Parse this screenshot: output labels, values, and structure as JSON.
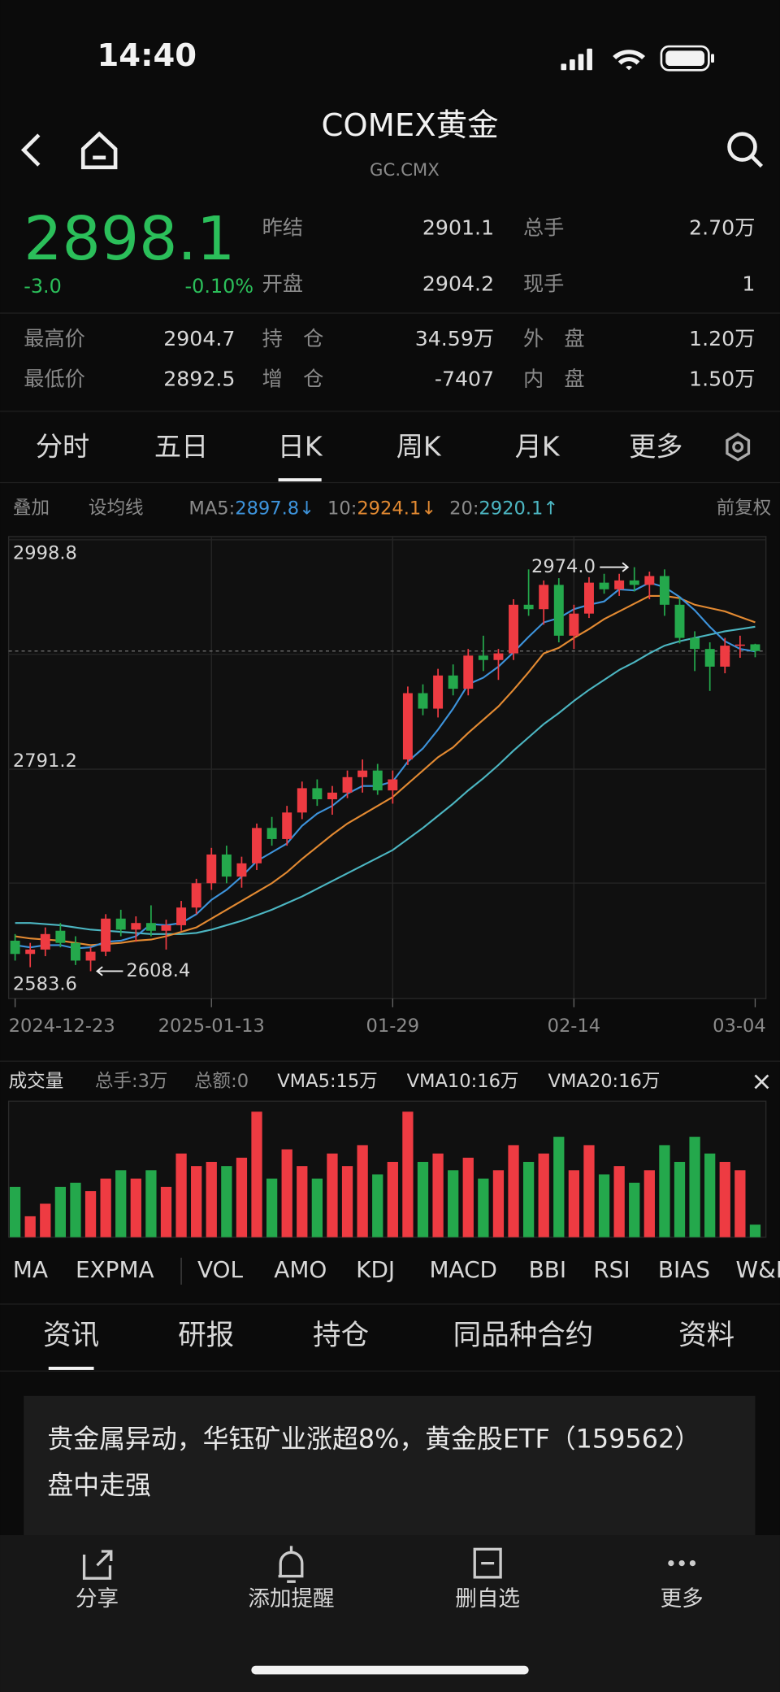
{
  "status_bar": {
    "time": "14:40"
  },
  "header": {
    "title": "COMEX黄金",
    "subtitle": "GC.CMX"
  },
  "quote": {
    "price": "2898.1",
    "change": "-3.0",
    "change_pct": "-0.10%",
    "fields": [
      {
        "label": "昨结",
        "value": "2901.1"
      },
      {
        "label": "总手",
        "value": "2.70万"
      },
      {
        "label": "开盘",
        "value": "2904.2"
      },
      {
        "label": "现手",
        "value": "1"
      },
      {
        "label": "最高价",
        "value": "2904.7"
      },
      {
        "label": "持　仓",
        "value": "34.59万"
      },
      {
        "label": "外　盘",
        "value": "1.20万"
      },
      {
        "label": "最低价",
        "value": "2892.5"
      },
      {
        "label": "增　仓",
        "value": "-7407"
      },
      {
        "label": "内　盘",
        "value": "1.50万"
      }
    ]
  },
  "period_tabs": {
    "items": [
      "分时",
      "五日",
      "日K",
      "周K",
      "月K",
      "更多"
    ],
    "active": 2
  },
  "ma_bar": {
    "overlay": "叠加",
    "set_ma": "设均线",
    "ma5": "MA5:",
    "ma10": "10:",
    "ma20": "20:",
    "ma5_trend": "↓",
    "ma10_trend": "↓",
    "ma20_trend": "↑",
    "adjust": "前复权"
  },
  "chart_data": {
    "type": "candlestick",
    "categories": [
      "2024-12-23",
      null,
      null,
      null,
      null,
      null,
      null,
      null,
      null,
      null,
      null,
      null,
      null,
      "2025-01-13",
      null,
      null,
      null,
      null,
      null,
      null,
      null,
      null,
      null,
      null,
      null,
      "01-29",
      null,
      null,
      null,
      null,
      null,
      null,
      null,
      null,
      null,
      null,
      null,
      "02-14",
      null,
      null,
      null,
      null,
      null,
      null,
      null,
      null,
      null,
      null,
      null,
      "03-04"
    ],
    "open": [
      2636,
      2624,
      2628,
      2645,
      2634,
      2618,
      2626,
      2656,
      2646,
      2652,
      2645,
      2650,
      2666,
      2688,
      2714,
      2694,
      2706,
      2738,
      2728,
      2752,
      2774,
      2764,
      2770,
      2784,
      2790,
      2772,
      2800,
      2860,
      2846,
      2876,
      2864,
      2894,
      2890,
      2896,
      2940,
      2936,
      2958,
      2912,
      2932,
      2960,
      2954,
      2962,
      2958,
      2966,
      2940,
      2910,
      2900,
      2884,
      2903,
      2904.2
    ],
    "high": [
      2642,
      2634,
      2648,
      2652,
      2640,
      2630,
      2660,
      2664,
      2658,
      2668,
      2655,
      2672,
      2692,
      2720,
      2722,
      2712,
      2742,
      2748,
      2758,
      2780,
      2782,
      2776,
      2790,
      2800,
      2796,
      2790,
      2866,
      2868,
      2882,
      2886,
      2900,
      2912,
      2900,
      2945,
      2972,
      2962,
      2964,
      2940,
      2965,
      2968,
      2968,
      2974.0,
      2970,
      2972,
      2946,
      2916,
      2906,
      2910,
      2912,
      2904.7
    ],
    "low": [
      2618,
      2612,
      2622,
      2630,
      2614,
      2608.4,
      2622,
      2640,
      2635,
      2640,
      2628,
      2645,
      2660,
      2682,
      2688,
      2684,
      2700,
      2722,
      2722,
      2746,
      2758,
      2750,
      2765,
      2770,
      2768,
      2760,
      2795,
      2840,
      2838,
      2858,
      2858,
      2880,
      2872,
      2890,
      2930,
      2922,
      2906,
      2900,
      2928,
      2950,
      2948,
      2952,
      2945,
      2930,
      2905,
      2880,
      2862,
      2878,
      2892,
      2892.5
    ],
    "close": [
      2624,
      2628,
      2642,
      2634,
      2618,
      2626,
      2656,
      2646,
      2652,
      2645,
      2650,
      2666,
      2688,
      2714,
      2694,
      2706,
      2738,
      2728,
      2752,
      2774,
      2764,
      2770,
      2784,
      2790,
      2772,
      2782,
      2860,
      2846,
      2876,
      2864,
      2894,
      2890,
      2896,
      2940,
      2936,
      2958,
      2912,
      2932,
      2960,
      2954,
      2962,
      2958,
      2966,
      2940,
      2910,
      2900,
      2884,
      2903,
      2904,
      2898.1
    ],
    "ma5": [
      2632,
      2630,
      2632,
      2632,
      2629,
      2630,
      2635,
      2636,
      2640,
      2651,
      2650,
      2652,
      2660,
      2673,
      2682,
      2694,
      2708,
      2716,
      2724,
      2740,
      2751,
      2758,
      2769,
      2776,
      2776,
      2780,
      2798,
      2810,
      2827,
      2846,
      2868,
      2874,
      2884,
      2897,
      2911,
      2924,
      2928,
      2936,
      2940,
      2943,
      2954,
      2953,
      2960,
      2956,
      2947,
      2935,
      2920,
      2907,
      2900,
      2897.8
    ],
    "ma10": [
      2640,
      2638,
      2637,
      2636,
      2634,
      2632,
      2633,
      2634,
      2636,
      2637,
      2640,
      2644,
      2648,
      2656,
      2664,
      2672,
      2680,
      2688,
      2698,
      2710,
      2721,
      2732,
      2742,
      2750,
      2758,
      2766,
      2778,
      2790,
      2802,
      2811,
      2824,
      2836,
      2848,
      2863,
      2879,
      2896,
      2901,
      2910,
      2918,
      2927,
      2934,
      2941,
      2948,
      2948,
      2946,
      2940,
      2937,
      2934,
      2929,
      2924.1
    ],
    "ma20": [
      2652,
      2652,
      2651,
      2650,
      2648,
      2646,
      2645,
      2644,
      2643,
      2642,
      2642,
      2642,
      2643,
      2646,
      2650,
      2654,
      2659,
      2664,
      2670,
      2676,
      2683,
      2690,
      2697,
      2704,
      2711,
      2718,
      2728,
      2738,
      2749,
      2760,
      2772,
      2783,
      2795,
      2808,
      2820,
      2832,
      2842,
      2853,
      2863,
      2872,
      2881,
      2888,
      2896,
      2903,
      2907,
      2910,
      2913,
      2916,
      2918,
      2920.1
    ],
    "up_color": "#ee3b42",
    "down_color": "#24a84c",
    "ma_colors": {
      "ma5": "#3d93db",
      "ma10": "#e38a32",
      "ma20": "#4cb6c2"
    },
    "ylim": [
      2583.6,
      2998.8
    ],
    "yticks": [
      2998.8,
      2791.2,
      2583.6
    ],
    "annotations": {
      "high": "2974.0",
      "low": "2608.4"
    },
    "volume": [
      12,
      5,
      8,
      12,
      13,
      11,
      14,
      16,
      14,
      16,
      12,
      20,
      17,
      18,
      17,
      19,
      30,
      14,
      21,
      17,
      14,
      20,
      17,
      22,
      15,
      18,
      30,
      18,
      20,
      16,
      19,
      14,
      16,
      22,
      18,
      20,
      24,
      16,
      22,
      15,
      17,
      13,
      16,
      22,
      18,
      24,
      20,
      18,
      16,
      3
    ],
    "volume_ylim": [
      0,
      32
    ]
  },
  "volume_bar": {
    "title": "成交量",
    "total_hands": "总手:3万",
    "total_amount": "总额:0",
    "vma5": "VMA5:15万",
    "vma10": "VMA10:16万",
    "vma20": "VMA20:16万"
  },
  "indicator_tabs": {
    "items": [
      "MA",
      "EXPMA",
      "VOL",
      "AMO",
      "KDJ",
      "MACD",
      "BBI",
      "RSI",
      "BIAS",
      "W&R"
    ]
  },
  "info_tabs": {
    "items": [
      "资讯",
      "研报",
      "持仓",
      "同品种合约",
      "资料"
    ],
    "active": 0
  },
  "news": {
    "headline": "贵金属异动，华钰矿业涨超8%，黄金股ETF（159562）盘中走强"
  },
  "toolbar": {
    "items": [
      "分享",
      "添加提醒",
      "删自选",
      "更多"
    ]
  }
}
